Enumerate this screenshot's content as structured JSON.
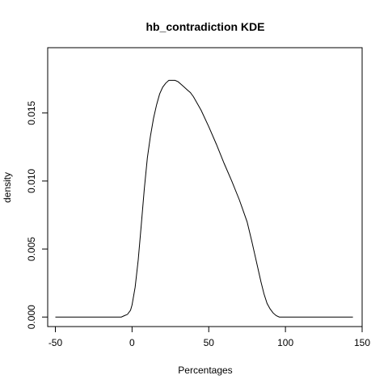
{
  "chart_data": {
    "type": "line",
    "title": "hb_contradiction  KDE",
    "xlabel": "Percentages",
    "ylabel": "density",
    "xlim": [
      -55,
      150
    ],
    "ylim": [
      -0.0007,
      0.0198
    ],
    "x_ticks": [
      -50,
      0,
      50,
      100,
      150
    ],
    "x_tick_labels": [
      "-50",
      "0",
      "50",
      "100",
      "150"
    ],
    "y_ticks": [
      0.0,
      0.005,
      0.01,
      0.015
    ],
    "y_tick_labels": [
      "0.000",
      "0.005",
      "0.010",
      "0.015"
    ],
    "grid": false,
    "line_color": "#000000",
    "series": [
      {
        "x": [
          -50,
          -40,
          -30,
          -20,
          -10,
          -7,
          -5,
          -3,
          -1,
          0,
          2,
          4,
          6,
          8,
          10,
          12,
          14,
          16,
          18,
          20,
          22,
          24,
          26,
          28,
          30,
          32,
          34,
          36,
          38,
          40,
          45,
          50,
          55,
          60,
          65,
          70,
          75,
          78,
          80,
          82,
          84,
          86,
          88,
          90,
          92,
          94,
          96,
          98,
          100,
          110,
          120,
          130,
          144
        ],
        "y": [
          0.0,
          0.0,
          0.0,
          0.0,
          0.0,
          0.0,
          0.0001,
          0.0002,
          0.0005,
          0.0009,
          0.0022,
          0.0042,
          0.0068,
          0.0094,
          0.0117,
          0.0133,
          0.0146,
          0.0156,
          0.0164,
          0.0169,
          0.0172,
          0.0174,
          0.0174,
          0.0174,
          0.0173,
          0.0171,
          0.0169,
          0.0167,
          0.0165,
          0.0162,
          0.0152,
          0.014,
          0.0127,
          0.0113,
          0.01,
          0.0086,
          0.007,
          0.0056,
          0.0046,
          0.0036,
          0.0026,
          0.0017,
          0.001,
          0.0006,
          0.0003,
          0.0001,
          0.0,
          0.0,
          0.0,
          0.0,
          0.0,
          0.0,
          0.0
        ]
      }
    ]
  }
}
